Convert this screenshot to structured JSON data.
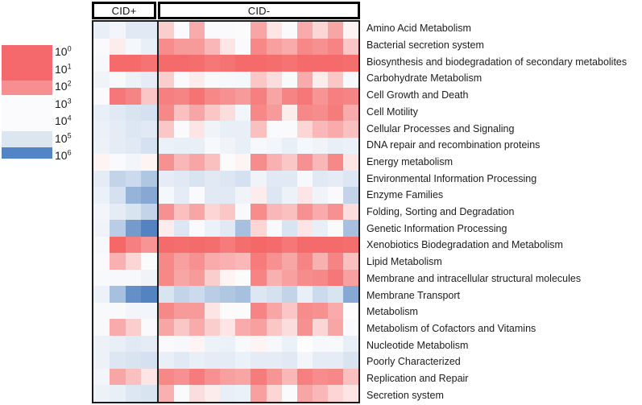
{
  "figure": {
    "background": "#ffffff"
  },
  "legend": {
    "label_base": "10",
    "exponents": [
      0,
      1,
      2,
      3,
      4,
      5,
      6
    ],
    "bands": [
      {
        "color": "#f5696c",
        "height": 44
      },
      {
        "color": "#f78f90",
        "height": 18
      },
      {
        "color": "#fbfafc",
        "height": 45
      },
      {
        "color": "#dce6f1",
        "height": 20
      },
      {
        "color": "#5185c6",
        "height": 14
      }
    ]
  },
  "chart_data": {
    "type": "heatmap",
    "title": "",
    "value_scale": "log10 abundance: 1 = 10^0-ish (strong red) through 6 = 10^6 (strong blue); white ~ 10^3.5",
    "legend_position": "left",
    "column_groups": [
      {
        "label": "CID+",
        "columns": 4
      },
      {
        "label": "CID-",
        "columns": 13
      }
    ],
    "colormap_stops": [
      [
        0.0,
        [
          243,
          90,
          90
        ]
      ],
      [
        1.0,
        [
          245,
          106,
          106
        ]
      ],
      [
        1.5,
        [
          246,
          128,
          128
        ]
      ],
      [
        2.0,
        [
          247,
          148,
          148
        ]
      ],
      [
        2.5,
        [
          249,
          176,
          176
        ]
      ],
      [
        3.0,
        [
          252,
          213,
          213
        ]
      ],
      [
        3.5,
        [
          254,
          252,
          252
        ]
      ],
      [
        4.0,
        [
          244,
          247,
          251
        ]
      ],
      [
        4.5,
        [
          233,
          239,
          247
        ]
      ],
      [
        5.0,
        [
          213,
          225,
          240
        ]
      ],
      [
        5.5,
        [
          167,
          192,
          223
        ]
      ],
      [
        6.0,
        [
          84,
          131,
          193
        ]
      ]
    ],
    "rows": [
      {
        "label": "Amino Acid Metabolism",
        "values": [
          4.5,
          4.1,
          4.7,
          4.7,
          2.9,
          3.7,
          2.4,
          3.7,
          3.7,
          3.6,
          2.3,
          3.2,
          3.7,
          2.4,
          3.0,
          2.3,
          3.4
        ]
      },
      {
        "label": "Bacterial secretion system",
        "values": [
          3.7,
          3.3,
          4.0,
          4.5,
          1.8,
          2.1,
          2.1,
          2.6,
          3.2,
          3.7,
          1.7,
          2.2,
          2.4,
          1.7,
          1.9,
          1.6,
          2.8
        ]
      },
      {
        "label": "Biosynthesis and biodegradation of secondary metabolites",
        "values": [
          3.9,
          1.0,
          1.0,
          1.2,
          1.0,
          1.0,
          1.1,
          1.3,
          1.2,
          1.0,
          1.0,
          1.1,
          1.2,
          1.0,
          1.0,
          1.0,
          1.1
        ]
      },
      {
        "label": "Carbohydrate Metabolism",
        "values": [
          4.2,
          3.8,
          4.3,
          4.6,
          2.9,
          3.7,
          3.3,
          3.8,
          3.9,
          4.0,
          2.8,
          3.1,
          3.8,
          2.4,
          3.3,
          2.8,
          3.9
        ]
      },
      {
        "label": "Cell Growth and Death",
        "values": [
          3.7,
          1.3,
          1.6,
          2.8,
          1.5,
          1.6,
          1.2,
          1.7,
          1.9,
          2.1,
          1.5,
          2.3,
          1.6,
          1.3,
          2.0,
          1.5,
          1.6
        ]
      },
      {
        "label": "Cell Motility",
        "values": [
          4.5,
          4.7,
          4.9,
          5.0,
          1.7,
          2.7,
          2.3,
          2.8,
          3.1,
          4.1,
          1.7,
          2.1,
          3.3,
          1.7,
          1.8,
          1.4,
          2.4
        ]
      },
      {
        "label": "Cellular Processes and Signaling",
        "values": [
          4.4,
          4.6,
          4.8,
          4.7,
          2.8,
          3.7,
          3.2,
          4.2,
          4.5,
          4.5,
          2.7,
          3.7,
          3.7,
          3.0,
          2.6,
          2.4,
          2.7
        ]
      },
      {
        "label": "DNA repair and recombination proteins",
        "values": [
          4.3,
          4.6,
          4.7,
          5.0,
          4.4,
          4.5,
          4.5,
          3.9,
          4.2,
          4.5,
          3.9,
          4.1,
          4.5,
          4.0,
          4.2,
          4.5,
          4.4
        ]
      },
      {
        "label": "Energy metabolism",
        "values": [
          3.4,
          3.7,
          4.1,
          3.4,
          1.9,
          2.6,
          2.3,
          2.7,
          3.6,
          3.4,
          1.8,
          2.5,
          2.8,
          1.9,
          2.6,
          1.7,
          3.2
        ]
      },
      {
        "label": "Environmental Information Processing",
        "values": [
          4.6,
          5.2,
          5.1,
          5.4,
          4.6,
          4.7,
          4.9,
          4.7,
          4.8,
          5.0,
          4.2,
          4.7,
          4.7,
          3.9,
          4.7,
          4.6,
          4.8
        ]
      },
      {
        "label": "Enzyme Families",
        "values": [
          4.4,
          5.0,
          5.6,
          5.7,
          4.0,
          4.6,
          3.7,
          4.7,
          4.7,
          4.2,
          3.3,
          4.8,
          4.3,
          3.2,
          4.2,
          3.7,
          5.2
        ]
      },
      {
        "label": "Folding, Sorting and Degradation",
        "values": [
          4.1,
          4.6,
          4.9,
          5.2,
          1.9,
          2.7,
          2.3,
          3.0,
          2.8,
          3.8,
          1.8,
          2.6,
          2.7,
          1.9,
          2.4,
          1.9,
          3.1
        ]
      },
      {
        "label": "Genetic Information Processing",
        "values": [
          4.2,
          5.3,
          5.8,
          6.0,
          3.3,
          4.8,
          3.7,
          4.4,
          4.7,
          5.5,
          3.0,
          3.8,
          4.9,
          3.2,
          4.5,
          3.7,
          5.5
        ]
      },
      {
        "label": "Xenobiotics Biodegradation and Metabolism",
        "values": [
          3.9,
          0.9,
          1.5,
          2.0,
          1.0,
          1.1,
          1.0,
          1.1,
          1.4,
          1.1,
          0.9,
          1.0,
          1.3,
          1.0,
          1.0,
          1.0,
          1.1
        ]
      },
      {
        "label": "Lipid Metabolism",
        "values": [
          3.7,
          2.5,
          3.0,
          3.6,
          1.7,
          2.2,
          1.9,
          2.4,
          2.5,
          2.6,
          1.4,
          1.9,
          2.3,
          1.6,
          2.5,
          1.6,
          2.7
        ]
      },
      {
        "label": "Membrane and intracellular structural molecules",
        "values": [
          3.8,
          3.9,
          3.9,
          4.2,
          1.7,
          2.3,
          2.1,
          2.9,
          3.4,
          3.6,
          1.6,
          2.5,
          2.2,
          1.8,
          1.7,
          1.3,
          2.2
        ]
      },
      {
        "label": "Membrane Transport",
        "values": [
          4.3,
          5.5,
          5.9,
          6.0,
          4.9,
          5.2,
          5.1,
          5.3,
          5.4,
          5.5,
          4.8,
          5.0,
          5.2,
          4.5,
          5.1,
          4.9,
          5.7
        ]
      },
      {
        "label": "Metabolism",
        "values": [
          3.8,
          3.8,
          4.1,
          4.1,
          1.7,
          2.1,
          2.1,
          3.2,
          3.6,
          3.6,
          1.6,
          2.3,
          2.8,
          1.8,
          1.9,
          2.4,
          3.5
        ]
      },
      {
        "label": "Metabolism of Cofactors and Vitamins",
        "values": [
          3.8,
          2.4,
          2.9,
          3.7,
          2.3,
          2.8,
          2.4,
          2.9,
          3.2,
          2.4,
          2.2,
          2.8,
          3.1,
          1.9,
          3.0,
          2.3,
          3.7
        ]
      },
      {
        "label": "Nucleotide Metabolism",
        "values": [
          4.3,
          4.5,
          4.7,
          4.6,
          3.7,
          3.9,
          3.4,
          4.3,
          4.4,
          3.8,
          3.4,
          3.9,
          4.4,
          3.5,
          3.9,
          3.8,
          4.5
        ]
      },
      {
        "label": "Poorly Characterized",
        "values": [
          4.3,
          4.8,
          4.9,
          5.0,
          4.5,
          4.7,
          4.5,
          4.6,
          4.6,
          4.4,
          4.6,
          4.6,
          4.7,
          4.1,
          4.6,
          4.6,
          4.9
        ]
      },
      {
        "label": "Replication and Repair",
        "values": [
          4.1,
          2.3,
          2.7,
          3.2,
          1.7,
          1.9,
          1.4,
          1.9,
          2.2,
          2.3,
          1.4,
          2.0,
          2.6,
          1.5,
          1.8,
          1.7,
          2.7
        ]
      },
      {
        "label": "Secretion system",
        "values": [
          4.3,
          4.5,
          4.8,
          4.9,
          2.5,
          3.7,
          3.1,
          3.3,
          4.5,
          4.4,
          2.2,
          3.0,
          3.7,
          2.3,
          2.6,
          3.0,
          3.2
        ]
      }
    ]
  }
}
